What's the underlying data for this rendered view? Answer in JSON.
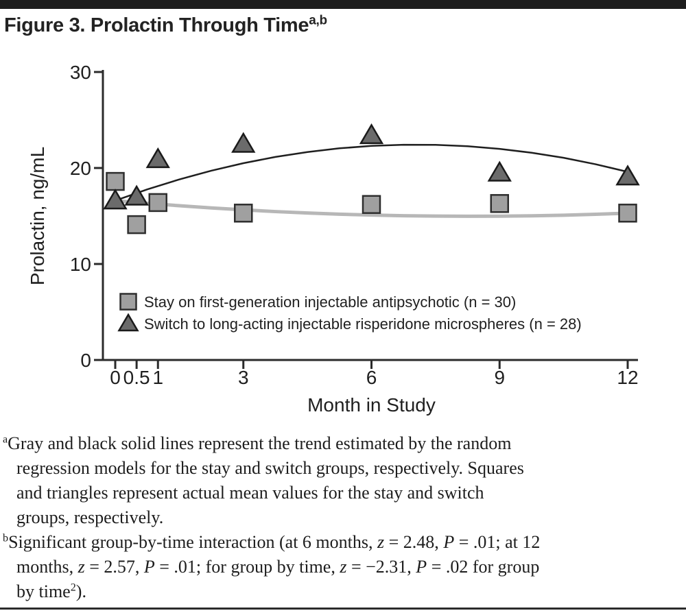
{
  "figure": {
    "title": "Figure 3. Prolactin Through Time",
    "title_superscript": "a,b"
  },
  "chart_data": {
    "type": "scatter",
    "title": "",
    "xlabel": "Month in Study",
    "ylabel": "Prolactin, ng/mL",
    "xlim": [
      0,
      12
    ],
    "ylim": [
      0,
      30
    ],
    "grid": false,
    "legend_position": "inside-lower-left",
    "x_ticks": [
      0,
      0.5,
      1,
      3,
      6,
      9,
      12
    ],
    "x_tick_labels": [
      "0",
      "0.5",
      "1",
      "3",
      "6",
      "9",
      "12"
    ],
    "y_ticks": [
      0,
      10,
      20,
      30
    ],
    "y_tick_labels": [
      "0",
      "10",
      "20",
      "30"
    ],
    "x": [
      0,
      0.5,
      1,
      3,
      6,
      9,
      12
    ],
    "series": [
      {
        "name": "Stay on first-generation injectable antipsychotic (n = 30)",
        "group": "stay",
        "marker": "square",
        "fill": "#a0a0a0",
        "edge": "#2e2e2e",
        "values": [
          18.6,
          14.1,
          16.4,
          15.3,
          16.2,
          16.3,
          15.3
        ]
      },
      {
        "name": "Switch to long-acting injectable risperidone microspheres (n = 28)",
        "group": "switch",
        "marker": "triangle",
        "fill": "#6b6b6b",
        "edge": "#1a1a1a",
        "values": [
          16.6,
          17.0,
          20.9,
          22.5,
          23.4,
          19.5,
          19.1
        ]
      }
    ],
    "trend_lines": [
      {
        "group": "stay",
        "color": "#b7b7b7",
        "width": 5,
        "x": [
          0,
          0.75,
          1.5,
          2.25,
          3,
          3.75,
          4.5,
          5.25,
          6,
          6.75,
          7.5,
          8.25,
          9,
          9.75,
          10.5,
          11.25,
          12
        ],
        "y": [
          16.6,
          16.32,
          16.07,
          15.84,
          15.64,
          15.46,
          15.31,
          15.19,
          15.1,
          15.03,
          14.99,
          14.97,
          14.98,
          15.02,
          15.08,
          15.18,
          15.29
        ]
      },
      {
        "group": "switch",
        "color": "#1f1f1f",
        "width": 2.5,
        "x": [
          0,
          0.75,
          1.5,
          2.25,
          3,
          3.75,
          4.5,
          5.25,
          6,
          6.75,
          7.5,
          8.25,
          9,
          9.75,
          10.5,
          11.25,
          12
        ],
        "y": [
          16.6,
          17.77,
          18.81,
          19.72,
          20.5,
          21.15,
          21.66,
          22.05,
          22.3,
          22.42,
          22.41,
          22.27,
          21.99,
          21.59,
          21.06,
          20.39,
          19.6
        ]
      }
    ],
    "axis_color": "#2b2b2b",
    "label_color": "#1f1f1f"
  },
  "footnotes": [
    {
      "marker": "a",
      "lines": [
        [
          {
            "t": "Gray and black solid lines represent the trend estimated by the random"
          }
        ],
        [
          {
            "t": "regression models for the stay and switch groups, respectively. Squares"
          }
        ],
        [
          {
            "t": "and triangles represent actual mean values for the stay and switch"
          }
        ],
        [
          {
            "t": "groups, respectively."
          }
        ]
      ]
    },
    {
      "marker": "b",
      "lines": [
        [
          {
            "t": "Significant group-by-time interaction (at 6 months, "
          },
          {
            "t": "z",
            "i": true
          },
          {
            "t": " = 2.48, "
          },
          {
            "t": "P",
            "i": true
          },
          {
            "t": " = .01; at 12"
          }
        ],
        [
          {
            "t": "months,  "
          },
          {
            "t": "z",
            "i": true
          },
          {
            "t": " = 2.57, "
          },
          {
            "t": "P",
            "i": true
          },
          {
            "t": " = .01; for group by time, "
          },
          {
            "t": "z",
            "i": true
          },
          {
            "t": " = −2.31, "
          },
          {
            "t": "P",
            "i": true
          },
          {
            "t": " = .02 for group"
          }
        ],
        [
          {
            "t": "by time"
          },
          {
            "t": "2",
            "sup": true
          },
          {
            "t": ")."
          }
        ]
      ]
    }
  ],
  "colors": {
    "top_rule": "#1d1d1d",
    "bottom_rule": "#2b2b2b",
    "text": "#1f1f1f"
  }
}
